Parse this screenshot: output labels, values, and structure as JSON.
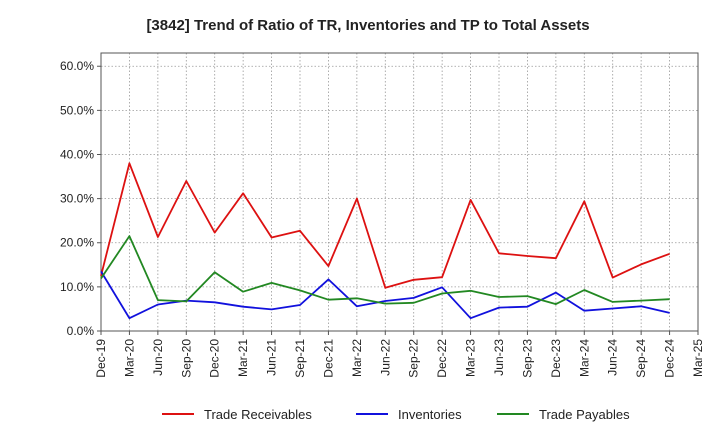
{
  "chart_data": {
    "type": "line",
    "title": "[3842]  Trend of Ratio of TR, Inventories and TP to Total Assets",
    "xlabel": "",
    "ylabel": "",
    "x_ticks": [
      "Dec-19",
      "Mar-20",
      "Jun-20",
      "Sep-20",
      "Dec-20",
      "Mar-21",
      "Jun-21",
      "Sep-21",
      "Dec-21",
      "Mar-22",
      "Jun-22",
      "Sep-22",
      "Dec-22",
      "Mar-23",
      "Jun-23",
      "Sep-23",
      "Dec-23",
      "Mar-24",
      "Jun-24",
      "Sep-24",
      "Dec-24",
      "Mar-25"
    ],
    "x": [
      "Dec-19",
      "Mar-20",
      "Jun-20",
      "Sep-20",
      "Dec-20",
      "Mar-21",
      "Jun-21",
      "Sep-21",
      "Dec-21",
      "Mar-22",
      "Jun-22",
      "Sep-22",
      "Dec-22",
      "Mar-23",
      "Jun-23",
      "Sep-23",
      "Dec-23",
      "Mar-24",
      "Jun-24",
      "Sep-24",
      "Dec-24"
    ],
    "y_ticks": [
      "0.0%",
      "10.0%",
      "20.0%",
      "30.0%",
      "40.0%",
      "50.0%",
      "60.0%"
    ],
    "ylim": [
      0,
      63
    ],
    "grid": true,
    "legend_position": "bottom",
    "series": [
      {
        "name": "Trade Receivables",
        "color": "#dd1111",
        "values": [
          12.5,
          38.0,
          21.3,
          34.0,
          22.3,
          31.2,
          21.2,
          22.7,
          14.7,
          30.0,
          9.8,
          11.6,
          12.2,
          29.7,
          17.6,
          17.0,
          16.5,
          29.4,
          12.1,
          15.1,
          17.5
        ]
      },
      {
        "name": "Inventories",
        "color": "#1111dd",
        "values": [
          13.5,
          2.9,
          6.0,
          6.9,
          6.5,
          5.5,
          4.9,
          5.9,
          11.7,
          5.6,
          6.8,
          7.5,
          9.9,
          2.9,
          5.3,
          5.5,
          8.7,
          4.6,
          5.1,
          5.6,
          4.1
        ]
      },
      {
        "name": "Trade Payables",
        "color": "#228822",
        "values": [
          11.9,
          21.5,
          7.0,
          6.7,
          13.3,
          8.9,
          10.9,
          9.2,
          7.1,
          7.4,
          6.2,
          6.4,
          8.5,
          9.1,
          7.7,
          7.9,
          6.1,
          9.3,
          6.6,
          6.9,
          7.2
        ]
      }
    ]
  }
}
